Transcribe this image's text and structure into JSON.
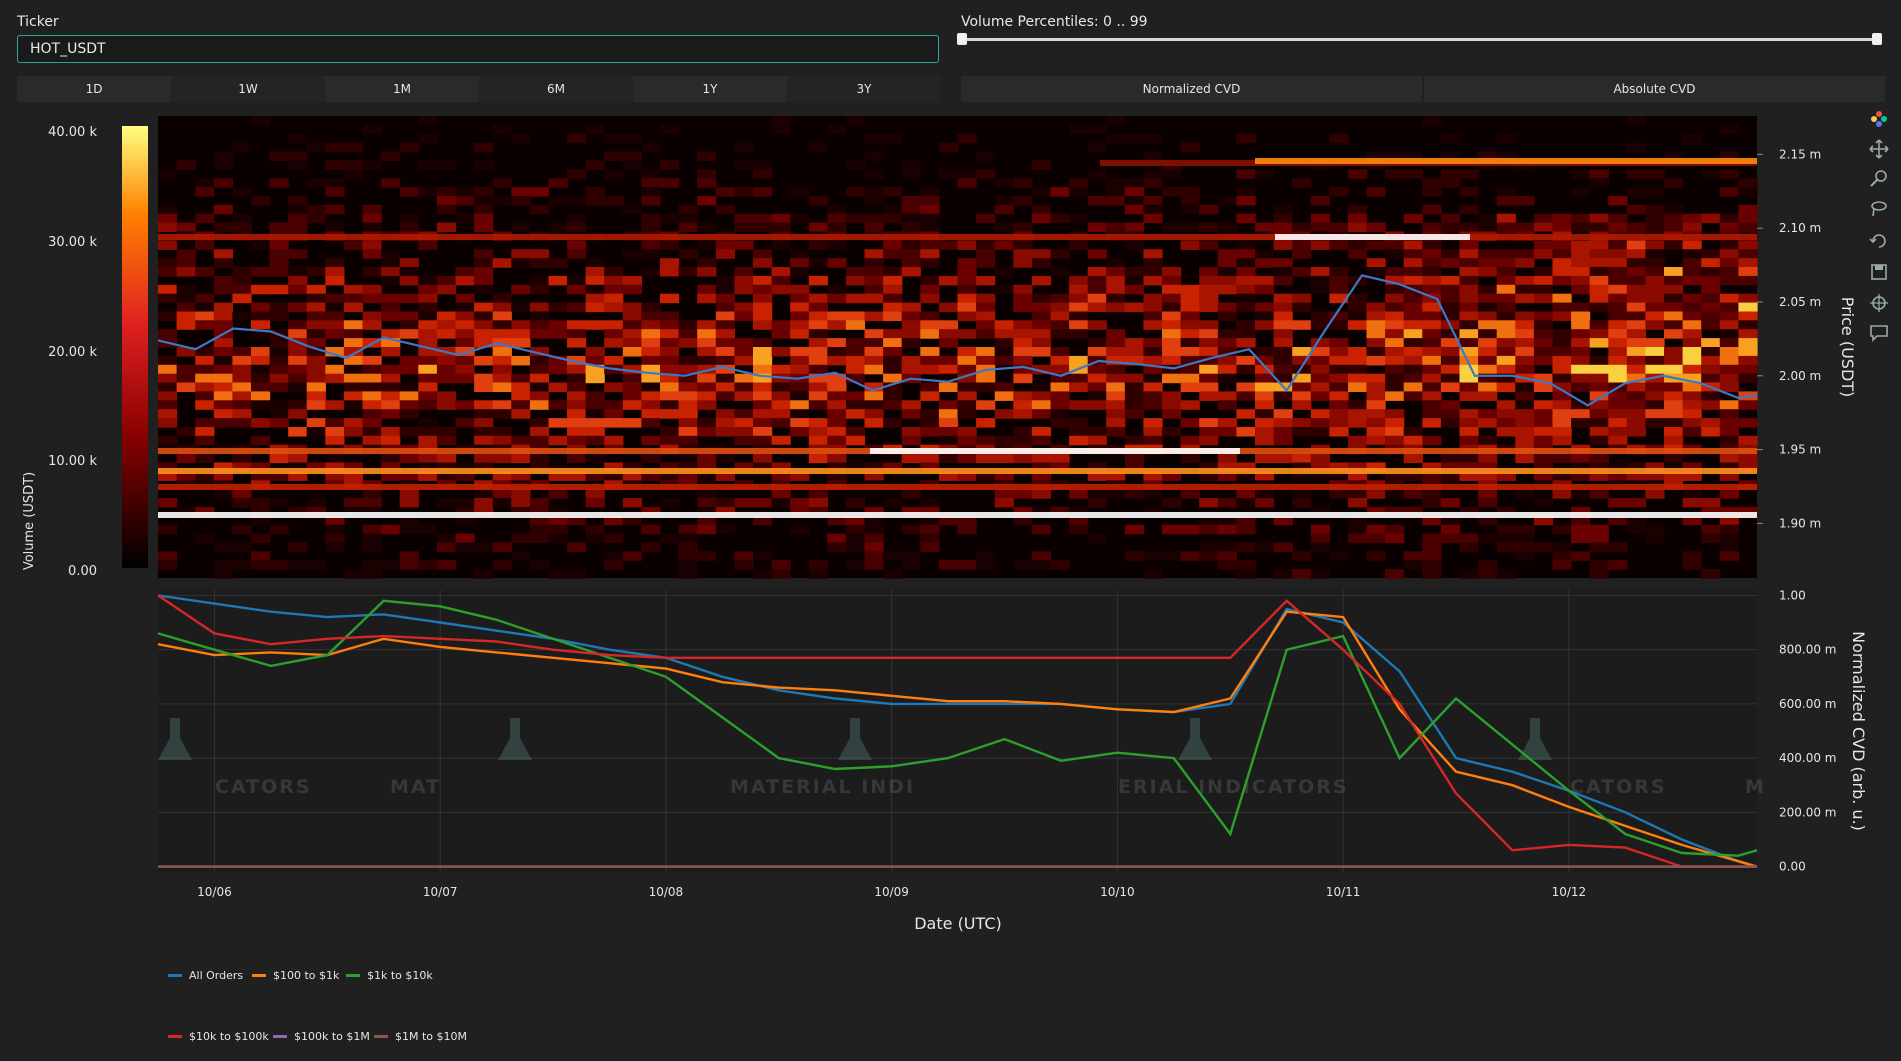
{
  "ticker": {
    "label": "Ticker",
    "value": "HOT_USDT"
  },
  "slider": {
    "label": "Volume Percentiles: 0 .. 99",
    "low": 0,
    "high": 99
  },
  "timeframes": [
    "1D",
    "1W",
    "1M",
    "6M",
    "1Y",
    "3Y"
  ],
  "modes": [
    "Normalized CVD",
    "Absolute CVD"
  ],
  "toolbar_icons": [
    "plotly-logo-icon",
    "pan-icon",
    "zoom-icon",
    "lasso-icon",
    "reset-icon",
    "save-icon",
    "crosshair-icon",
    "comment-icon"
  ],
  "watermark": {
    "text_pieces": [
      "CATORS",
      "MAT",
      "MATERIAL INDI",
      "ERIAL INDICATORS",
      "CATORS",
      "M"
    ]
  },
  "colors": {
    "background": "#202020",
    "price_line": "#3a78c8",
    "all_orders": "#1f77b4",
    "p100_1k": "#ff7f0e",
    "p1k_10k": "#2ca02c",
    "p10k_100k": "#d62728",
    "p100k_1m": "#9467bd",
    "p1m_10m": "#8c564b"
  },
  "chart_data": [
    {
      "type": "heatmap",
      "title": "",
      "xlabel": "",
      "ylabel": "Price (USDT)",
      "colorbar": {
        "label": "Volume (USDT)",
        "ticks": [
          "0.00",
          "10.00 k",
          "20.00 k",
          "30.00 k",
          "40.00 k"
        ],
        "range": [
          0,
          40000
        ],
        "colorscale": [
          "#000000",
          "#8a0000",
          "#e02020",
          "#ff8000",
          "#ffff80"
        ]
      },
      "y_ticks": [
        "1.90 m",
        "1.95 m",
        "2.00 m",
        "2.05 m",
        "2.10 m",
        "2.15 m"
      ],
      "y_range": [
        1.863,
        2.176
      ],
      "x_range_days": [
        "10/05 18:00",
        "10/12 20:00"
      ],
      "price_line": {
        "name": "Price",
        "x": [
          "10/05 18:00",
          "10/05 22:00",
          "10/06 02:00",
          "10/06 06:00",
          "10/06 10:00",
          "10/06 14:00",
          "10/06 18:00",
          "10/06 22:00",
          "10/07 02:00",
          "10/07 06:00",
          "10/07 10:00",
          "10/07 14:00",
          "10/07 18:00",
          "10/07 22:00",
          "10/08 02:00",
          "10/08 06:00",
          "10/08 10:00",
          "10/08 14:00",
          "10/08 18:00",
          "10/08 22:00",
          "10/09 02:00",
          "10/09 06:00",
          "10/09 10:00",
          "10/09 14:00",
          "10/09 18:00",
          "10/09 22:00",
          "10/10 02:00",
          "10/10 06:00",
          "10/10 10:00",
          "10/10 14:00",
          "10/10 18:00",
          "10/10 22:00",
          "10/11 02:00",
          "10/11 06:00",
          "10/11 10:00",
          "10/11 14:00",
          "10/11 18:00",
          "10/11 22:00",
          "10/12 02:00",
          "10/12 06:00",
          "10/12 10:00",
          "10/12 14:00",
          "10/12 18:00",
          "10/12 20:00"
        ],
        "y": [
          2.024,
          2.018,
          2.032,
          2.03,
          2.02,
          2.012,
          2.026,
          2.02,
          2.014,
          2.022,
          2.016,
          2.01,
          2.005,
          2.002,
          2.0,
          2.006,
          2.0,
          1.998,
          2.002,
          1.99,
          1.998,
          1.996,
          2.004,
          2.006,
          2.0,
          2.01,
          2.008,
          2.005,
          2.012,
          2.018,
          1.99,
          2.03,
          2.068,
          2.062,
          2.052,
          2.0,
          2.0,
          1.995,
          1.98,
          1.995,
          2.0,
          1.995,
          1.985,
          1.987
        ]
      }
    },
    {
      "type": "line",
      "title": "",
      "xlabel": "Date (UTC)",
      "ylabel": "Normalized CVD (arb. u.)",
      "x_ticks": [
        "10/06",
        "10/07",
        "10/08",
        "10/09",
        "10/10",
        "10/11",
        "10/12"
      ],
      "y_ticks": [
        "0.00",
        "200.00 m",
        "400.00 m",
        "600.00 m",
        "800.00 m",
        "1.00"
      ],
      "ylim": [
        -0.02,
        1.02
      ],
      "x": [
        "10/05 18:00",
        "10/06 00:00",
        "10/06 06:00",
        "10/06 12:00",
        "10/06 18:00",
        "10/07 00:00",
        "10/07 06:00",
        "10/07 12:00",
        "10/07 18:00",
        "10/08 00:00",
        "10/08 06:00",
        "10/08 12:00",
        "10/08 18:00",
        "10/09 00:00",
        "10/09 06:00",
        "10/09 12:00",
        "10/09 18:00",
        "10/10 00:00",
        "10/10 06:00",
        "10/10 12:00",
        "10/10 18:00",
        "10/11 00:00",
        "10/11 06:00",
        "10/11 12:00",
        "10/11 18:00",
        "10/12 00:00",
        "10/12 06:00",
        "10/12 12:00",
        "10/12 18:00",
        "10/12 20:00"
      ],
      "series": [
        {
          "name": "All Orders",
          "values": [
            1.0,
            0.97,
            0.94,
            0.92,
            0.93,
            0.9,
            0.87,
            0.84,
            0.8,
            0.77,
            0.7,
            0.65,
            0.62,
            0.6,
            0.6,
            0.6,
            0.6,
            0.58,
            0.57,
            0.6,
            0.95,
            0.9,
            0.72,
            0.4,
            0.35,
            0.28,
            0.2,
            0.1,
            0.02,
            0.0
          ]
        },
        {
          "name": "$100 to $1k",
          "values": [
            0.82,
            0.78,
            0.79,
            0.78,
            0.84,
            0.81,
            0.79,
            0.77,
            0.75,
            0.73,
            0.68,
            0.66,
            0.65,
            0.63,
            0.61,
            0.61,
            0.6,
            0.58,
            0.57,
            0.62,
            0.94,
            0.92,
            0.58,
            0.35,
            0.3,
            0.22,
            0.15,
            0.08,
            0.02,
            0.0
          ]
        },
        {
          "name": "$1k to $10k",
          "values": [
            0.86,
            0.8,
            0.74,
            0.78,
            0.98,
            0.96,
            0.91,
            0.84,
            0.77,
            0.7,
            0.55,
            0.4,
            0.36,
            0.37,
            0.4,
            0.47,
            0.39,
            0.42,
            0.4,
            0.12,
            0.8,
            0.85,
            0.4,
            0.62,
            0.45,
            0.28,
            0.12,
            0.05,
            0.04,
            0.06
          ]
        },
        {
          "name": "$10k to $100k",
          "values": [
            1.0,
            0.86,
            0.82,
            0.84,
            0.85,
            0.84,
            0.83,
            0.8,
            0.78,
            0.77,
            0.77,
            0.77,
            0.77,
            0.77,
            0.77,
            0.77,
            0.77,
            0.77,
            0.77,
            0.77,
            0.98,
            0.8,
            0.6,
            0.27,
            0.06,
            0.08,
            0.07,
            0.0,
            0.0,
            0.0
          ]
        },
        {
          "name": "$100k to $1M",
          "values": [
            0,
            0,
            0,
            0,
            0,
            0,
            0,
            0,
            0,
            0,
            0,
            0,
            0,
            0,
            0,
            0,
            0,
            0,
            0,
            0,
            0,
            0,
            0,
            0,
            0,
            0,
            0,
            0,
            0,
            0
          ]
        },
        {
          "name": "$1M to $10M",
          "values": [
            0,
            0,
            0,
            0,
            0,
            0,
            0,
            0,
            0,
            0,
            0,
            0,
            0,
            0,
            0,
            0,
            0,
            0,
            0,
            0,
            0,
            0,
            0,
            0,
            0,
            0,
            0,
            0,
            0,
            0
          ]
        }
      ]
    }
  ]
}
